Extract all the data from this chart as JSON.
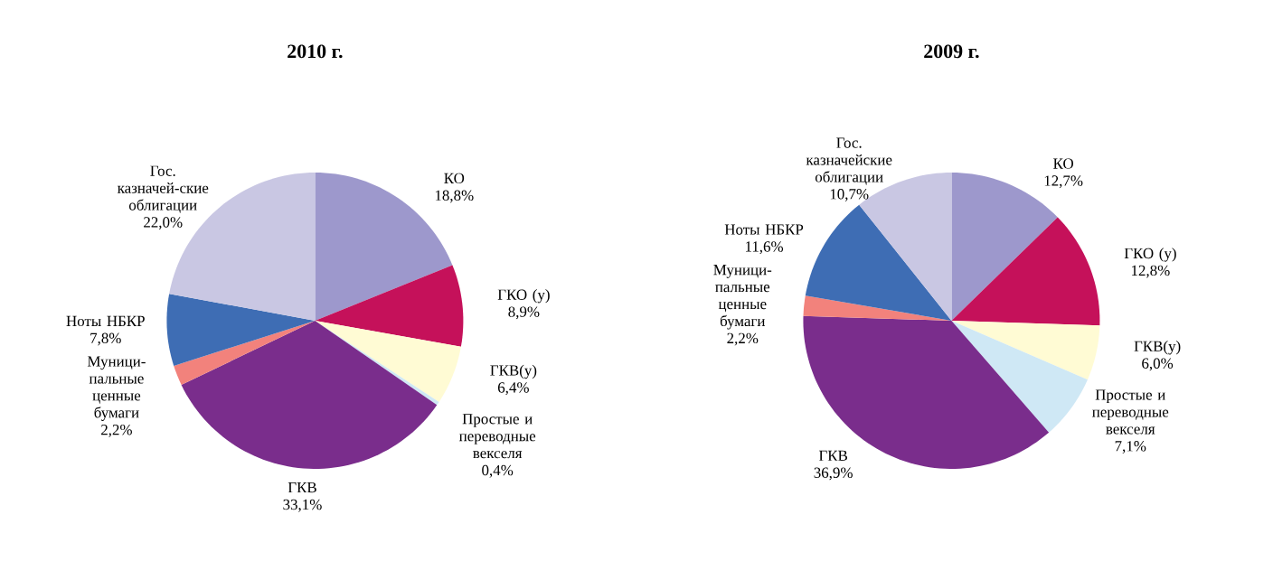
{
  "chart_data": [
    {
      "type": "pie",
      "title": "2010 г.",
      "categories": [
        "КО",
        "ГКО (у)",
        "ГКВ(у)",
        "Простые и переводные векселя",
        "ГКВ",
        "Муници-пальные ценные бумаги",
        "Ноты НБКР",
        "Гос. казначей-ские облигации"
      ],
      "values": [
        18.8,
        8.9,
        6.4,
        0.4,
        33.1,
        2.2,
        7.8,
        22.0
      ],
      "value_labels": [
        "18,8%",
        "8,9%",
        "6,4%",
        "0,4%",
        "33,1%",
        "2,2%",
        "7,8%",
        "22,0%"
      ],
      "colors": [
        "#9d98cc",
        "#c5115a",
        "#fffbd4",
        "#cfe8f5",
        "#7a2d8c",
        "#f2827c",
        "#3e6db4",
        "#c9c7e3"
      ]
    },
    {
      "type": "pie",
      "title": "2009 г.",
      "categories": [
        "КО",
        "ГКО (у)",
        "ГКВ(у)",
        "Простые и переводные векселя",
        "ГКВ",
        "Муници-пальные ценные бумаги",
        "Ноты НБКР",
        "Гос. казначейские облигации"
      ],
      "values": [
        12.7,
        12.8,
        6.0,
        7.1,
        36.9,
        2.2,
        11.6,
        10.7
      ],
      "value_labels": [
        "12,7%",
        "12,8%",
        "6,0%",
        "7,1%",
        "36,9%",
        "2,2%",
        "11,6%",
        "10,7%"
      ],
      "colors": [
        "#9d98cc",
        "#c5115a",
        "#fffbd4",
        "#cfe8f5",
        "#7a2d8c",
        "#f2827c",
        "#3e6db4",
        "#c9c7e3"
      ]
    }
  ]
}
